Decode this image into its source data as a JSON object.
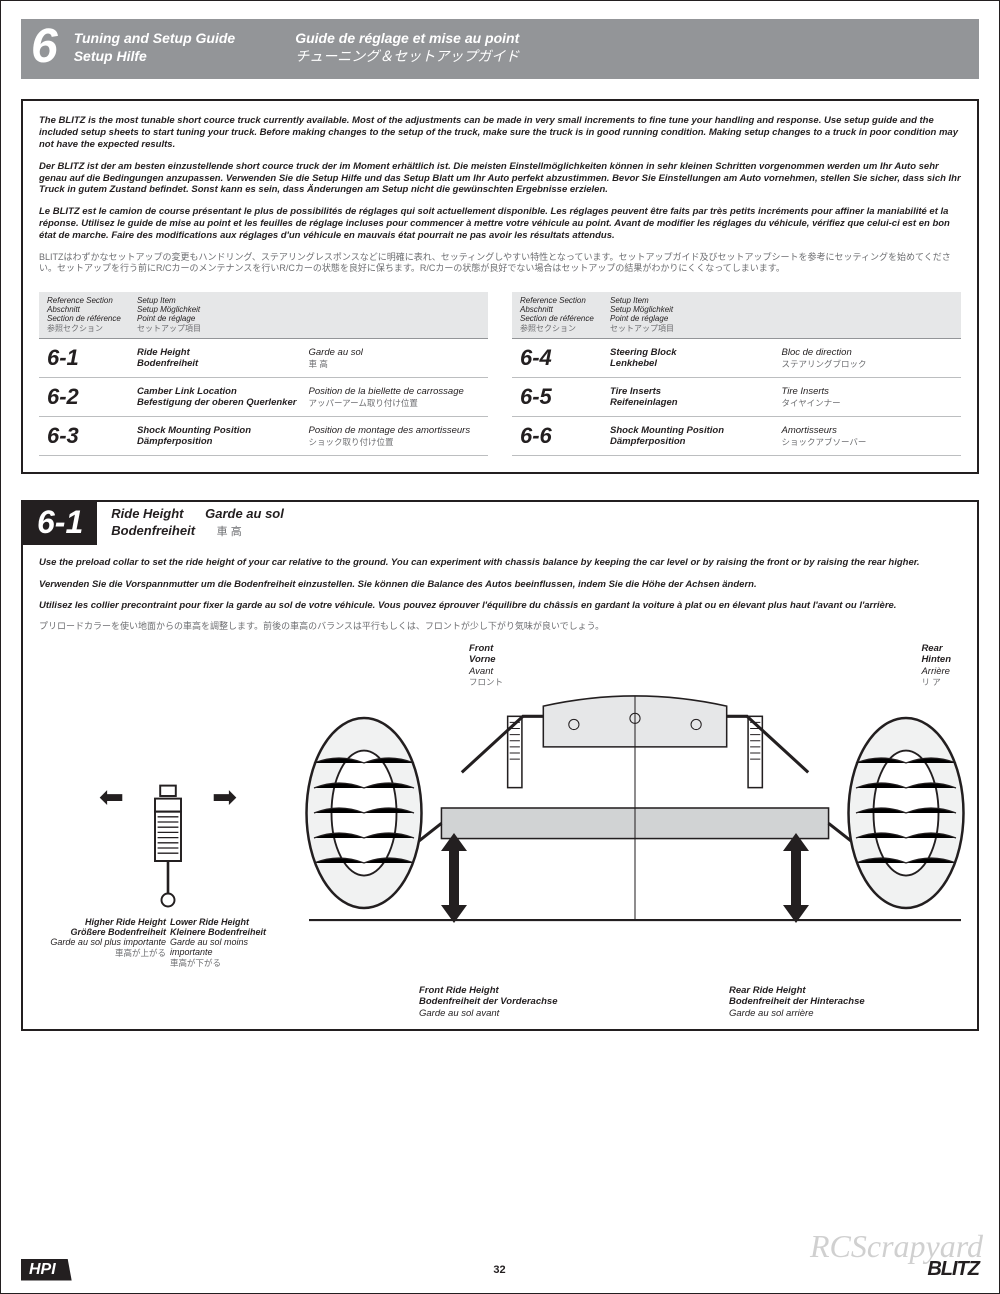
{
  "header": {
    "number": "6",
    "col1_line1": "Tuning and Setup Guide",
    "col1_line2": "Setup Hilfe",
    "col2_line1": "Guide de réglage et mise au point",
    "col2_line2": "チューニング＆セットアップガイド"
  },
  "intro": {
    "en": "The BLITZ is the most tunable short cource truck currently available. Most of the adjustments can be made in very small increments to fine tune your handling and response. Use setup guide and the included setup sheets to start tuning your truck. Before making changes to the setup of the truck, make sure the truck is in good running condition. Making setup changes to a truck in poor condition may not have the expected results.",
    "de": "Der BLITZ ist der am besten einzustellende short cource truck der im Moment erhältlich ist. Die meisten Einstellmöglichkeiten können in sehr kleinen Schritten vorgenommen werden um Ihr Auto sehr genau auf die Bedingungen anzupassen. Verwenden Sie die Setup Hilfe und das Setup Blatt um Ihr Auto perfekt abzustimmen. Bevor Sie Einstellungen am Auto vornehmen, stellen Sie sicher, dass sich Ihr Truck in gutem Zustand befindet. Sonst kann es sein, dass Änderungen am Setup nicht die gewünschten Ergebnisse erzielen.",
    "fr": "Le BLITZ est le camion de course présentant le plus de possibilités de réglages qui soit actuellement disponible. Les réglages peuvent être faits par très petits incréments pour affiner la maniabilité et la réponse. Utilisez le guide de mise au point et les feuilles de réglage incluses pour commencer à mettre votre véhicule au point. Avant de modifier les réglages du véhicule, vérifiez que celui-ci est en bon état de marche. Faire des modifications aux réglages d'un véhicule en mauvais état pourrait ne pas avoir les résultats attendus.",
    "jp": "BLITZはわずかなセットアップの変更もハンドリング、ステアリングレスポンスなどに明確に表れ、セッティングしやすい特性となっています。セットアップガイド及びセットアップシートを参考にセッティングを始めてください。セットアップを行う前にR/Cカーのメンテナンスを行いR/Cカーの状態を良好に保ちます。R/Cカーの状態が良好でない場合はセットアップの結果がわかりにくくなってしまいます。"
  },
  "toc_header": {
    "ref_en": "Reference Section",
    "ref_de": "Abschnitt",
    "ref_fr": "Section de référence",
    "ref_jp": "参照セクション",
    "item_en": "Setup Item",
    "item_de": "Setup Möglichkeit",
    "item_fr": "Point de réglage",
    "item_jp": "セットアップ項目"
  },
  "toc_left": [
    {
      "sec": "6-1",
      "en": "Ride Height",
      "de": "Bodenfreiheit",
      "fr": "Garde au sol",
      "jp": "車 高"
    },
    {
      "sec": "6-2",
      "en": "Camber Link Location",
      "de": "Befestigung der oberen Querlenker",
      "fr": "Position de la biellette de carrossage",
      "jp": "アッパーアーム取り付け位置"
    },
    {
      "sec": "6-3",
      "en": "Shock Mounting Position",
      "de": "Dämpferposition",
      "fr": "Position de montage des amortisseurs",
      "jp": "ショック取り付け位置"
    }
  ],
  "toc_right": [
    {
      "sec": "6-4",
      "en": "Steering Block",
      "de": "Lenkhebel",
      "fr": "Bloc de direction",
      "jp": "ステアリングブロック"
    },
    {
      "sec": "6-5",
      "en": "Tire Inserts",
      "de": "Reifeneinlagen",
      "fr": "Tire Inserts",
      "jp": "タイヤインナー"
    },
    {
      "sec": "6-6",
      "en": "Shock Mounting Position",
      "de": "Dämpferposition",
      "fr": "Amortisseurs",
      "jp": "ショックアブソーバー"
    }
  ],
  "section61": {
    "num": "6-1",
    "t_en": "Ride Height",
    "t_de": "Bodenfreiheit",
    "t_fr": "Garde au sol",
    "t_jp": "車 高",
    "p_en": "Use the preload collar to set the ride height of your car relative to the ground. You can experiment with chassis balance by keeping the car level or by raising the front or by raising the rear higher.",
    "p_de": "Verwenden Sie die Vorspannmutter um die Bodenfreiheit einzustellen. Sie können die Balance des Autos beeinflussen, indem Sie die Höhe der Achsen ändern.",
    "p_fr": "Utilisez les collier precontraint pour fixer la garde au sol de votre véhicule. Vous pouvez éprouver l'équilibre du châssis en gardant la voiture à plat ou en élevant plus haut l'avant ou l'arrière.",
    "p_jp": "プリロードカラーを使い地面からの車高を調整します。前後の車高のバランスは平行もしくは、フロントが少し下がり気味が良いでしょう。"
  },
  "shock": {
    "higher_en": "Higher Ride Height",
    "higher_de": "Größere Bodenfreiheit",
    "higher_fr": "Garde au sol plus importante",
    "higher_jp": "車高が上がる",
    "lower_en": "Lower Ride Height",
    "lower_de": "Kleinere Bodenfreiheit",
    "lower_fr": "Garde au sol moins importante",
    "lower_jp": "車高が下がる"
  },
  "labels": {
    "front_en": "Front",
    "front_de": "Vorne",
    "front_fr": "Avant",
    "front_jp": "フロント",
    "rear_en": "Rear",
    "rear_de": "Hinten",
    "rear_fr": "Arrière",
    "rear_jp": "リ ア",
    "frh_en": "Front Ride Height",
    "frh_de": "Bodenfreiheit der Vorderachse",
    "frh_fr": "Garde au sol avant",
    "rrh_en": "Rear Ride Height",
    "rrh_de": "Bodenfreiheit der Hinterachse",
    "rrh_fr": "Garde au sol arrière"
  },
  "footer": {
    "hpi": "HPI",
    "page": "32",
    "brand": "BLITZ",
    "watermark": "RCScrapyard"
  }
}
